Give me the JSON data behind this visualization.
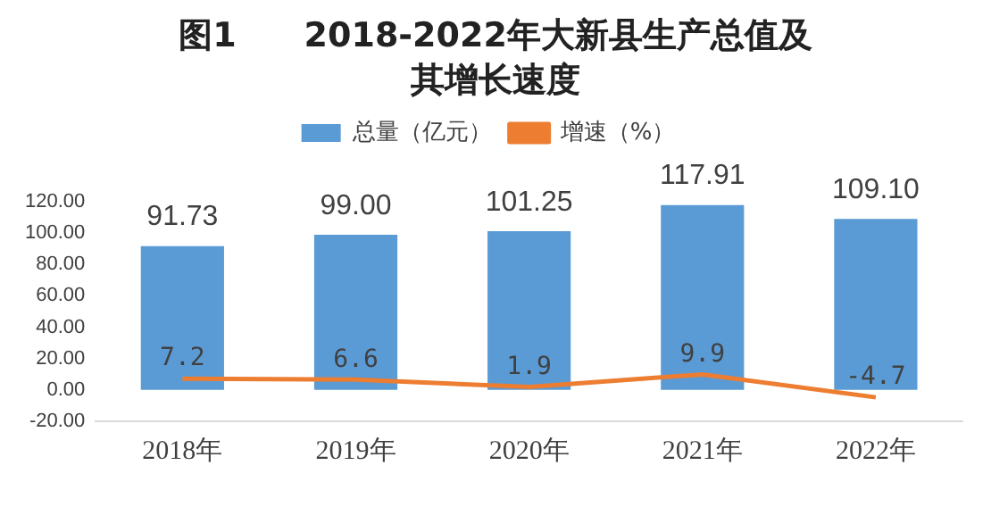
{
  "chart_data": {
    "type": "bar",
    "title": "图1　　2018-2022年大新县生产总值及其增长速度",
    "categories": [
      "2018年",
      "2019年",
      "2020年",
      "2021年",
      "2022年"
    ],
    "series": [
      {
        "name": "总量（亿元）",
        "color": "#5b9bd5",
        "values": [
          91.73,
          99,
          101.25,
          117.91,
          109.1
        ],
        "value_labels": [
          "91.73",
          "99.00",
          "101.25",
          "117.91",
          "109.10"
        ]
      },
      {
        "name": "增速（%）",
        "type": "line",
        "color": "#ed7d31",
        "values": [
          7.2,
          6.6,
          1.9,
          9.9,
          -4.7
        ],
        "value_labels": [
          "7.2",
          "6.6",
          "1.9",
          "9.9",
          "-4.7"
        ]
      }
    ],
    "ylim": [
      -20,
      120
    ],
    "yticks": [
      {
        "value": -20,
        "label": "-20.00"
      },
      {
        "value": 0,
        "label": "0.00"
      },
      {
        "value": 20,
        "label": "20.00"
      },
      {
        "value": 40,
        "label": "40.00"
      },
      {
        "value": 60,
        "label": "60.00"
      },
      {
        "value": 80,
        "label": "80.00"
      },
      {
        "value": 100,
        "label": "100.00"
      },
      {
        "value": 120,
        "label": "120.00"
      }
    ],
    "grid": false,
    "legend": "top",
    "marker": "none",
    "line_style": "solid"
  }
}
